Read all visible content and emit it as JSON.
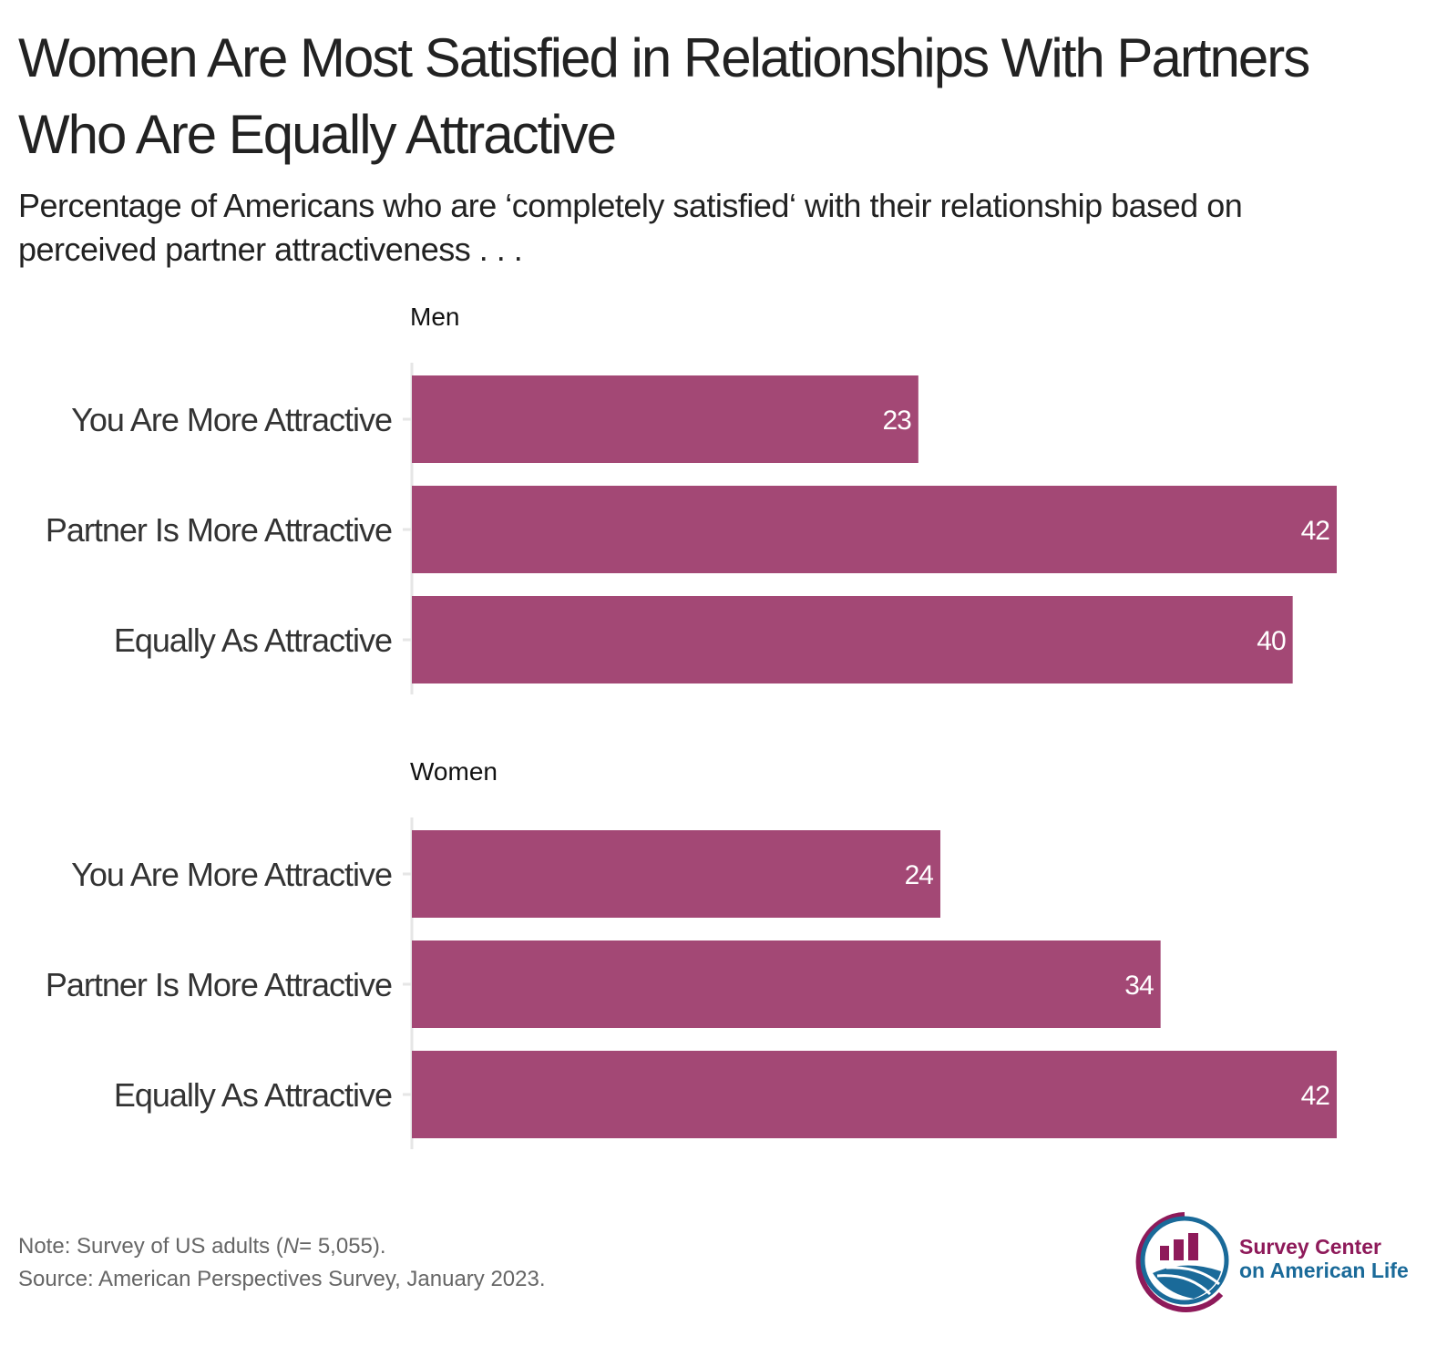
{
  "title": "Women Are Most Satisfied in Relationships With Partners Who Are Equally Attractive",
  "subtitle": "Percentage of Americans who are ‘completely satisfied‘ with their relationship based on perceived partner attractiveness . . .",
  "chart_data": [
    {
      "type": "bar",
      "orientation": "horizontal",
      "facet": "Men",
      "categories": [
        "You Are More Attractive",
        "Partner Is More Attractive",
        "Equally As Attractive"
      ],
      "values": [
        23,
        42,
        40
      ],
      "xlim": [
        0,
        42
      ],
      "color": "#a34875"
    },
    {
      "type": "bar",
      "orientation": "horizontal",
      "facet": "Women",
      "categories": [
        "You Are More Attractive",
        "Partner Is More Attractive",
        "Equally As Attractive"
      ],
      "values": [
        24,
        34,
        42
      ],
      "xlim": [
        0,
        42
      ],
      "color": "#a34875"
    }
  ],
  "note": {
    "prefix": "Note: Survey of US adults (",
    "n_label": "N",
    "suffix": "= 5,055).",
    "source": "Source: American Perspectives Survey, January 2023."
  },
  "logo": {
    "line1": "Survey Center",
    "line2": "on American Life",
    "color1": "#8e1a5a",
    "color2": "#1a6a99"
  }
}
